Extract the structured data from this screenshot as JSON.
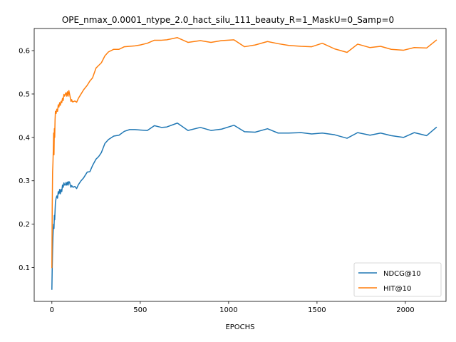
{
  "chart_data": {
    "type": "line",
    "title": "OPE_nmax_0.0001_ntype_2.0_hact_silu_111_beauty_R=1_MaskU=0_Samp=0",
    "xlabel": "EPOCHS",
    "ylabel": "",
    "xlim": [
      -100,
      2230
    ],
    "ylim": [
      0.022,
      0.651
    ],
    "xticks": [
      0,
      500,
      1000,
      1500,
      2000
    ],
    "xtick_labels": [
      "0",
      "500",
      "1000",
      "1500",
      "2000"
    ],
    "yticks": [
      0.1,
      0.2,
      0.3,
      0.4,
      0.5,
      0.6
    ],
    "ytick_labels": [
      "0.1",
      "0.2",
      "0.3",
      "0.4",
      "0.5",
      "0.6"
    ],
    "legend_position": "lower right",
    "grid": false,
    "series": [
      {
        "name": "NDCG@10",
        "color": "#1f77b4",
        "points": [
          [
            0,
            0.05
          ],
          [
            2,
            0.1
          ],
          [
            4,
            0.14
          ],
          [
            6,
            0.17
          ],
          [
            8,
            0.19
          ],
          [
            10,
            0.2
          ],
          [
            12,
            0.19
          ],
          [
            14,
            0.22
          ],
          [
            16,
            0.21
          ],
          [
            18,
            0.23
          ],
          [
            20,
            0.25
          ],
          [
            24,
            0.26
          ],
          [
            28,
            0.265
          ],
          [
            32,
            0.26
          ],
          [
            36,
            0.275
          ],
          [
            40,
            0.27
          ],
          [
            44,
            0.28
          ],
          [
            48,
            0.27
          ],
          [
            52,
            0.28
          ],
          [
            56,
            0.275
          ],
          [
            60,
            0.29
          ],
          [
            64,
            0.285
          ],
          [
            68,
            0.295
          ],
          [
            72,
            0.29
          ],
          [
            76,
            0.29
          ],
          [
            80,
            0.296
          ],
          [
            84,
            0.29
          ],
          [
            88,
            0.297
          ],
          [
            92,
            0.29
          ],
          [
            96,
            0.298
          ],
          [
            100,
            0.297
          ],
          [
            104,
            0.29
          ],
          [
            108,
            0.285
          ],
          [
            112,
            0.289
          ],
          [
            116,
            0.287
          ],
          [
            120,
            0.285
          ],
          [
            130,
            0.287
          ],
          [
            140,
            0.282
          ],
          [
            150,
            0.291
          ],
          [
            165,
            0.3
          ],
          [
            180,
            0.307
          ],
          [
            200,
            0.32
          ],
          [
            215,
            0.321
          ],
          [
            230,
            0.335
          ],
          [
            250,
            0.35
          ],
          [
            265,
            0.356
          ],
          [
            280,
            0.365
          ],
          [
            300,
            0.386
          ],
          [
            320,
            0.395
          ],
          [
            350,
            0.403
          ],
          [
            380,
            0.405
          ],
          [
            410,
            0.414
          ],
          [
            440,
            0.418
          ],
          [
            470,
            0.418
          ],
          [
            500,
            0.417
          ],
          [
            540,
            0.416
          ],
          [
            580,
            0.427
          ],
          [
            620,
            0.423
          ],
          [
            650,
            0.424
          ],
          [
            710,
            0.433
          ],
          [
            770,
            0.416
          ],
          [
            840,
            0.423
          ],
          [
            900,
            0.416
          ],
          [
            960,
            0.419
          ],
          [
            1030,
            0.428
          ],
          [
            1090,
            0.413
          ],
          [
            1150,
            0.412
          ],
          [
            1220,
            0.42
          ],
          [
            1280,
            0.41
          ],
          [
            1340,
            0.41
          ],
          [
            1410,
            0.411
          ],
          [
            1470,
            0.408
          ],
          [
            1530,
            0.41
          ],
          [
            1600,
            0.406
          ],
          [
            1670,
            0.398
          ],
          [
            1730,
            0.411
          ],
          [
            1800,
            0.405
          ],
          [
            1860,
            0.41
          ],
          [
            1920,
            0.404
          ],
          [
            1990,
            0.4
          ],
          [
            2050,
            0.411
          ],
          [
            2120,
            0.404
          ],
          [
            2175,
            0.423
          ]
        ]
      },
      {
        "name": "HIT@10",
        "color": "#ff7f0e",
        "points": [
          [
            0,
            0.1
          ],
          [
            2,
            0.24
          ],
          [
            4,
            0.32
          ],
          [
            6,
            0.34
          ],
          [
            8,
            0.37
          ],
          [
            10,
            0.41
          ],
          [
            12,
            0.36
          ],
          [
            14,
            0.42
          ],
          [
            16,
            0.4
          ],
          [
            18,
            0.44
          ],
          [
            20,
            0.46
          ],
          [
            24,
            0.455
          ],
          [
            28,
            0.465
          ],
          [
            32,
            0.46
          ],
          [
            36,
            0.475
          ],
          [
            40,
            0.47
          ],
          [
            44,
            0.48
          ],
          [
            48,
            0.474
          ],
          [
            52,
            0.483
          ],
          [
            56,
            0.48
          ],
          [
            60,
            0.49
          ],
          [
            64,
            0.485
          ],
          [
            68,
            0.499
          ],
          [
            72,
            0.495
          ],
          [
            76,
            0.5
          ],
          [
            80,
            0.503
          ],
          [
            84,
            0.495
          ],
          [
            88,
            0.505
          ],
          [
            92,
            0.495
          ],
          [
            96,
            0.508
          ],
          [
            100,
            0.5
          ],
          [
            104,
            0.492
          ],
          [
            108,
            0.483
          ],
          [
            112,
            0.487
          ],
          [
            116,
            0.482
          ],
          [
            120,
            0.482
          ],
          [
            130,
            0.484
          ],
          [
            140,
            0.481
          ],
          [
            150,
            0.49
          ],
          [
            165,
            0.5
          ],
          [
            180,
            0.51
          ],
          [
            200,
            0.52
          ],
          [
            215,
            0.53
          ],
          [
            230,
            0.537
          ],
          [
            250,
            0.56
          ],
          [
            265,
            0.566
          ],
          [
            280,
            0.572
          ],
          [
            300,
            0.588
          ],
          [
            320,
            0.597
          ],
          [
            350,
            0.603
          ],
          [
            380,
            0.603
          ],
          [
            410,
            0.609
          ],
          [
            440,
            0.61
          ],
          [
            470,
            0.611
          ],
          [
            500,
            0.613
          ],
          [
            540,
            0.617
          ],
          [
            580,
            0.624
          ],
          [
            620,
            0.624
          ],
          [
            650,
            0.625
          ],
          [
            710,
            0.63
          ],
          [
            770,
            0.619
          ],
          [
            840,
            0.623
          ],
          [
            900,
            0.619
          ],
          [
            960,
            0.623
          ],
          [
            1030,
            0.625
          ],
          [
            1090,
            0.609
          ],
          [
            1150,
            0.613
          ],
          [
            1220,
            0.621
          ],
          [
            1280,
            0.616
          ],
          [
            1340,
            0.612
          ],
          [
            1410,
            0.61
          ],
          [
            1470,
            0.609
          ],
          [
            1530,
            0.617
          ],
          [
            1600,
            0.604
          ],
          [
            1670,
            0.596
          ],
          [
            1730,
            0.615
          ],
          [
            1800,
            0.607
          ],
          [
            1860,
            0.61
          ],
          [
            1920,
            0.603
          ],
          [
            1990,
            0.601
          ],
          [
            2050,
            0.607
          ],
          [
            2120,
            0.606
          ],
          [
            2175,
            0.624
          ]
        ]
      }
    ]
  }
}
